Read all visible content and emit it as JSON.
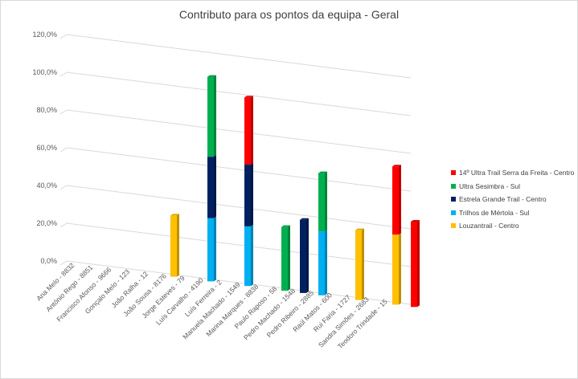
{
  "chart_data": {
    "type": "bar",
    "stacked": true,
    "title": "Contributo para os pontos da equipa - Geral",
    "y_tick_labels": [
      "0,0%",
      "20,0%",
      "40,0%",
      "60,0%",
      "80,0%",
      "100,0%",
      "120,0%"
    ],
    "ylim": [
      0,
      120
    ],
    "grid": true,
    "legend_position": "right",
    "categories": [
      "Ana Melo - 8832",
      "António Rego - 8851",
      "Francisco Afonso - 9666",
      "Gonçalo Melo - 123",
      "João Ralha - 12",
      "João Sousa - 8176",
      "Jorge Esteves - 79",
      "Luís Carvalho - 4190",
      "Luís Ferreira - 2",
      "Manuela Machado - 1549",
      "Marina Marques - 8838",
      "Paulo Raposo - 58",
      "Pedro Machado - 1548",
      "Pedro Ribeiro - 2885",
      "Raúl Matos - 600",
      "Rui Faria - 1727",
      "Sandra Simões - 2683",
      "Teodoro Trindade - 15"
    ],
    "series": [
      {
        "name": "Louzantrail - Centro",
        "color": "#ffc000",
        "values": [
          0,
          0,
          0,
          0,
          33,
          0,
          0,
          0,
          0,
          0,
          0,
          0,
          0,
          0,
          37,
          0,
          37,
          0
        ]
      },
      {
        "name": "Trilhos de Mértola - Sul",
        "color": "#00b0f0",
        "values": [
          0,
          0,
          0,
          0,
          0,
          0,
          34,
          0,
          32,
          0,
          0,
          0,
          34,
          0,
          0,
          0,
          0,
          0
        ]
      },
      {
        "name": "Estrela Grande Trail - Centro",
        "color": "#002060",
        "values": [
          0,
          0,
          0,
          0,
          0,
          0,
          33,
          0,
          33,
          0,
          0,
          39,
          0,
          0,
          0,
          0,
          0,
          0
        ]
      },
      {
        "name": "Ultra Sesimbra - Sul",
        "color": "#00b050",
        "values": [
          0,
          0,
          0,
          0,
          0,
          0,
          43,
          0,
          0,
          0,
          34,
          0,
          31,
          0,
          0,
          0,
          0,
          0
        ]
      },
      {
        "name": "14º Ultra Trail Serra da Freita - Centro",
        "color": "#ff0000",
        "values": [
          0,
          0,
          0,
          0,
          0,
          0,
          0,
          0,
          36,
          0,
          0,
          0,
          0,
          0,
          0,
          0,
          36,
          45
        ]
      }
    ],
    "legend_order": [
      4,
      3,
      2,
      1,
      0
    ]
  }
}
